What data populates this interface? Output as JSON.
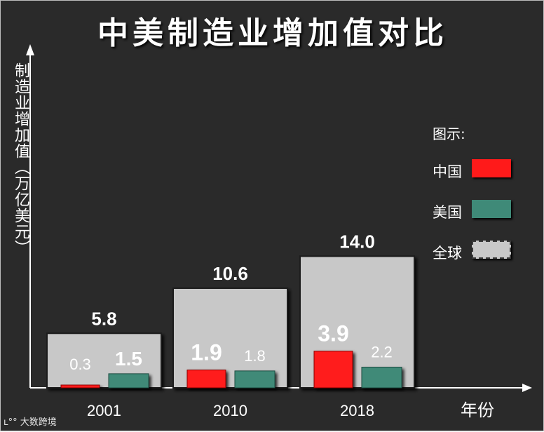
{
  "chart_data": {
    "type": "bar",
    "title": "中美制造业增加值对比",
    "xlabel": "年份",
    "ylabel": "制造业增加值（万亿美元）",
    "categories": [
      "2001",
      "2010",
      "2018"
    ],
    "series": [
      {
        "name": "全球",
        "values": [
          5.8,
          10.6,
          14.0
        ],
        "color": "#c8c8c8"
      },
      {
        "name": "中国",
        "values": [
          0.3,
          1.9,
          3.9
        ],
        "color": "#ff1a1a"
      },
      {
        "name": "美国",
        "values": [
          1.5,
          1.8,
          2.2
        ],
        "color": "#3f8a78"
      }
    ],
    "value_labels": {
      "全球": [
        "5.8",
        "10.6",
        "14.0"
      ],
      "中国": [
        "0.3",
        "1.9",
        "3.9"
      ],
      "美国": [
        "1.5",
        "1.8",
        "2.2"
      ]
    },
    "ylim": [
      0,
      14.0
    ],
    "grid": false,
    "legend_title": "图示:",
    "legend_position": "right"
  },
  "legend": {
    "title": "图示:",
    "items": [
      "中国",
      "美国",
      "全球"
    ]
  },
  "watermark": "大数跨境",
  "colors": {
    "background": "#2a2a2a",
    "axis": "#ffffff",
    "china": "#ff1a1a",
    "usa": "#3f8a78",
    "global": "#c8c8c8"
  }
}
